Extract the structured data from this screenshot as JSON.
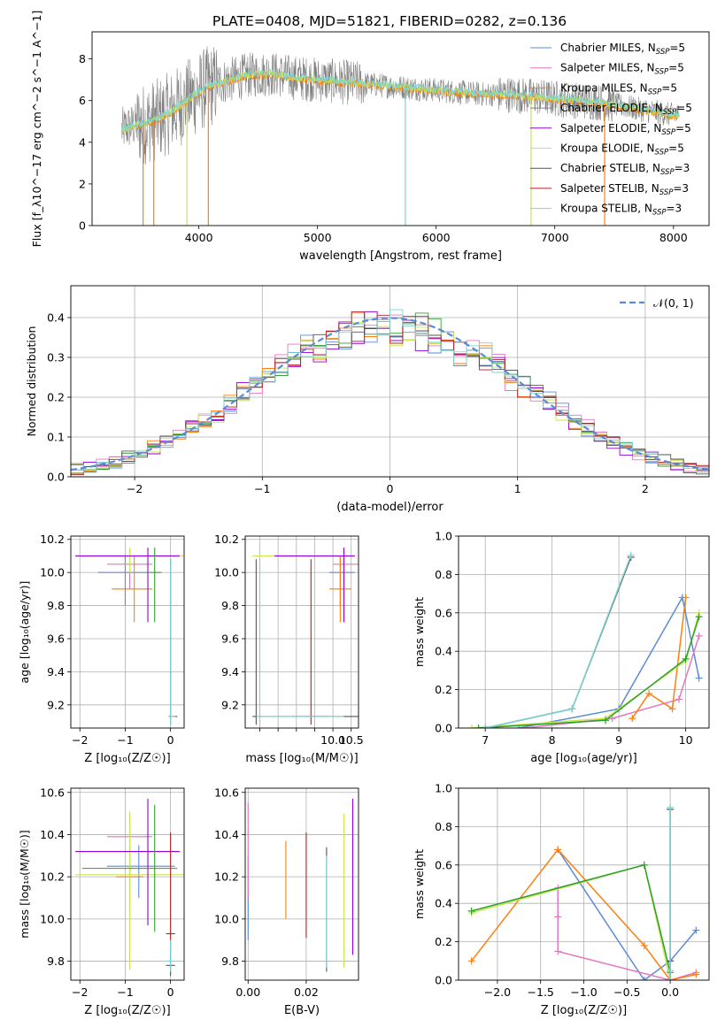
{
  "figure_title": "PLATE=0408, MJD=51821, FIBERID=0282, z=0.136",
  "colors": {
    "chabrier_miles": "#5b8bd6",
    "salpeter_miles": "#e377c2",
    "kroupa_miles": "#ff7f0e",
    "chabrier_elodie": "#2ca02c",
    "salpeter_elodie": "#9400d3",
    "kroupa_elodie": "#c8e650",
    "chabrier_stelib": "#555555",
    "salpeter_stelib": "#b22222",
    "kroupa_stelib": "#7fd3d3",
    "obs": "#808080",
    "normal": "#5b8bd6",
    "grid": "#b0b0b0"
  },
  "chart_data": [
    {
      "id": "spectrum",
      "type": "line",
      "xlabel": "wavelength [Angstrom, rest frame]",
      "ylabel": "Flux [f_λ10^−17 erg cm^−2 s^−1 A^−1]",
      "xlim": [
        3100,
        8300
      ],
      "ylim": [
        0,
        9.3
      ],
      "xticks": [
        4000,
        5000,
        6000,
        7000,
        8000
      ],
      "yticks": [
        0,
        2,
        4,
        6,
        8
      ],
      "grid": false,
      "legend_position": "right",
      "legend": [
        {
          "label": "Chabrier MILES, N",
          "sub": "SSP",
          "suffix": "=5",
          "color_key": "chabrier_miles"
        },
        {
          "label": "Salpeter MILES, N",
          "sub": "SSP",
          "suffix": "=5",
          "color_key": "salpeter_miles"
        },
        {
          "label": "Kroupa MILES, N",
          "sub": "SSP",
          "suffix": "=5",
          "color_key": "kroupa_miles"
        },
        {
          "label": "Chabrier ELODIE, N",
          "sub": "SSP",
          "suffix": "=5",
          "color_key": "obs"
        },
        {
          "label": "Salpeter ELODIE, N",
          "sub": "SSP",
          "suffix": "=5",
          "color_key": "salpeter_elodie"
        },
        {
          "label": "Kroupa ELODIE, N",
          "sub": "SSP",
          "suffix": "=5",
          "color_key": "kroupa_elodie"
        },
        {
          "label": "Chabrier STELIB, N",
          "sub": "SSP",
          "suffix": "=3",
          "color_key": "chabrier_stelib"
        },
        {
          "label": "Salpeter STELIB, N",
          "sub": "SSP",
          "suffix": "=3",
          "color_key": "salpeter_stelib"
        },
        {
          "label": "Kroupa STELIB, N",
          "sub": "SSP",
          "suffix": "=3",
          "color_key": "kroupa_stelib"
        }
      ],
      "model_curve": {
        "x": [
          3350,
          3450,
          3550,
          3650,
          3750,
          3850,
          3950,
          4050,
          4200,
          4400,
          4600,
          4800,
          5000,
          5200,
          5400,
          5600,
          5800,
          6000,
          6200,
          6400,
          6600,
          6800,
          7000,
          7200,
          7400,
          7600,
          7800,
          8000
        ],
        "y": [
          4.6,
          4.8,
          4.9,
          5.1,
          5.4,
          5.8,
          6.2,
          6.6,
          6.9,
          7.2,
          7.3,
          7.1,
          7.0,
          6.9,
          6.8,
          6.7,
          6.6,
          6.5,
          6.4,
          6.3,
          6.3,
          6.2,
          6.1,
          6.0,
          5.9,
          5.7,
          5.5,
          5.3
        ]
      },
      "dropouts": [
        {
          "x": 3530,
          "color_key": "kroupa_miles"
        },
        {
          "x": 3620,
          "color_key": "kroupa_miles"
        },
        {
          "x": 3900,
          "color_key": "kroupa_elodie"
        },
        {
          "x": 4080,
          "color_key": "kroupa_miles"
        },
        {
          "x": 5740,
          "color_key": "kroupa_stelib"
        },
        {
          "x": 6800,
          "color_key": "kroupa_elodie"
        },
        {
          "x": 7420,
          "color_key": "kroupa_miles"
        }
      ]
    },
    {
      "id": "residuals",
      "type": "histogram",
      "xlabel": "(data-model)/error",
      "ylabel": "Normed distribution",
      "xlim": [
        -2.5,
        2.5
      ],
      "ylim": [
        0,
        0.48
      ],
      "xticks": [
        -2,
        -1,
        0,
        1,
        2
      ],
      "yticks": [
        0.0,
        0.1,
        0.2,
        0.3,
        0.4
      ],
      "grid": true,
      "legend": [
        {
          "label": "𝒩(0, 1)",
          "color_key": "normal",
          "style": "dashed"
        }
      ],
      "legend_position": "top-right",
      "bin_width": 0.1
    },
    {
      "id": "age-vs-Z",
      "type": "errorbar",
      "xlabel": "Z [log₁₀(Z/Z☉)]",
      "ylabel": "age  [log₁₀(age/yr)]",
      "xlim": [
        -2.2,
        0.3
      ],
      "ylim": [
        9.06,
        10.22
      ],
      "xticks": [
        -2,
        -1,
        0
      ],
      "yticks": [
        9.2,
        9.4,
        9.6,
        9.8,
        10.0,
        10.2
      ],
      "grid": true,
      "points": [
        {
          "x": -1.0,
          "y": 10.0,
          "xerr": [
            0.6,
            0.5
          ],
          "yerr": [
            0.2,
            0.1
          ],
          "color_key": "chabrier_miles"
        },
        {
          "x": -0.9,
          "y": 10.05,
          "xerr": [
            0.5,
            0.5
          ],
          "yerr": [
            0.15,
            0.1
          ],
          "color_key": "salpeter_miles"
        },
        {
          "x": -0.8,
          "y": 9.9,
          "xerr": [
            0.5,
            0.4
          ],
          "yerr": [
            0.2,
            0.2
          ],
          "color_key": "kroupa_miles"
        },
        {
          "x": -0.9,
          "y": 10.1,
          "xerr": [
            1.2,
            1.2
          ],
          "yerr": [
            0.1,
            0.05
          ],
          "color_key": "kroupa_elodie"
        },
        {
          "x": -0.5,
          "y": 10.1,
          "xerr": [
            1.6,
            0.7
          ],
          "yerr": [
            0.4,
            0.05
          ],
          "color_key": "salpeter_elodie"
        },
        {
          "x": -0.35,
          "y": 10.0,
          "xerr": [
            0.15,
            0.15
          ],
          "yerr": [
            0.3,
            0.15
          ],
          "color_key": "chabrier_elodie"
        },
        {
          "x": 0.0,
          "y": 9.13,
          "xerr": [
            0.05,
            0.15
          ],
          "yerr": [
            0.05,
            0.95
          ],
          "color_key": "chabrier_stelib"
        },
        {
          "x": 0.0,
          "y": 9.13,
          "xerr": [
            0.05,
            0.1
          ],
          "yerr": [
            0.05,
            0.95
          ],
          "color_key": "kroupa_stelib"
        }
      ]
    },
    {
      "id": "age-vs-mass",
      "type": "errorbar",
      "xlabel": "mass [log₁₀(M/M☉)]",
      "ylabel": "",
      "xlim": [
        7.6,
        10.7
      ],
      "ylim": [
        9.06,
        10.22
      ],
      "xticks": [
        8.0,
        8.5,
        9.0,
        9.5,
        10.0,
        10.5
      ],
      "xticklabels": [
        "",
        "",
        "",
        "",
        "10.0",
        "10.5"
      ],
      "yticks": [
        9.2,
        9.4,
        9.6,
        9.8,
        10.0,
        10.2
      ],
      "grid": true,
      "points": [
        {
          "x": 10.2,
          "y": 10.0,
          "xerr": [
            0.3,
            0.4
          ],
          "yerr": [
            0.2,
            0.1
          ],
          "color_key": "chabrier_miles"
        },
        {
          "x": 10.3,
          "y": 10.05,
          "xerr": [
            0.3,
            0.4
          ],
          "yerr": [
            0.15,
            0.1
          ],
          "color_key": "salpeter_miles"
        },
        {
          "x": 10.2,
          "y": 9.9,
          "xerr": [
            0.3,
            0.3
          ],
          "yerr": [
            0.2,
            0.2
          ],
          "color_key": "kroupa_miles"
        },
        {
          "x": 10.3,
          "y": 10.1,
          "xerr": [
            2.5,
            0.3
          ],
          "yerr": [
            0.4,
            0.05
          ],
          "color_key": "kroupa_elodie"
        },
        {
          "x": 10.3,
          "y": 10.1,
          "xerr": [
            1.9,
            0.3
          ],
          "yerr": [
            0.4,
            0.05
          ],
          "color_key": "salpeter_elodie"
        },
        {
          "x": 7.9,
          "y": 9.13,
          "xerr": [
            0.1,
            2.9
          ],
          "yerr": [
            0.05,
            0.95
          ],
          "color_key": "chabrier_stelib"
        },
        {
          "x": 9.4,
          "y": 9.13,
          "xerr": [
            0.5,
            0.5
          ],
          "yerr": [
            0.05,
            0.95
          ],
          "color_key": "salpeter_stelib"
        },
        {
          "x": 8.0,
          "y": 9.13,
          "xerr": [
            0.1,
            2.3
          ],
          "yerr": [
            0.05,
            0.95
          ],
          "color_key": "kroupa_stelib"
        }
      ]
    },
    {
      "id": "massweight-vs-age",
      "type": "line",
      "xlabel": "age  [log₁₀(age/yr)]",
      "ylabel": "mass weight",
      "xlim": [
        6.6,
        10.35
      ],
      "ylim": [
        0,
        1.0
      ],
      "xticks": [
        7,
        8,
        9,
        10
      ],
      "yticks": [
        0.0,
        0.2,
        0.4,
        0.6,
        0.8,
        1.0
      ],
      "grid": true,
      "series": [
        {
          "color_key": "chabrier_miles",
          "x": [
            7.5,
            9.0,
            9.95,
            10.2
          ],
          "y": [
            0.0,
            0.1,
            0.68,
            0.26
          ]
        },
        {
          "color_key": "salpeter_miles",
          "x": [
            7.6,
            8.9,
            9.9,
            10.2
          ],
          "y": [
            0.0,
            0.05,
            0.15,
            0.48
          ]
        },
        {
          "color_key": "kroupa_miles",
          "x": [
            9.2,
            9.45,
            9.8,
            10.0
          ],
          "y": [
            0.05,
            0.18,
            0.1,
            0.68
          ]
        },
        {
          "color_key": "kroupa_elodie",
          "x": [
            6.8,
            8.8,
            10.0,
            10.2
          ],
          "y": [
            0.0,
            0.05,
            0.35,
            0.6
          ]
        },
        {
          "color_key": "chabrier_elodie",
          "x": [
            6.9,
            8.8,
            10.0,
            10.2
          ],
          "y": [
            0.0,
            0.04,
            0.36,
            0.58
          ]
        },
        {
          "color_key": "chabrier_stelib",
          "x": [
            7.0,
            8.3,
            9.18
          ],
          "y": [
            0.0,
            0.1,
            0.89
          ]
        },
        {
          "color_key": "kroupa_stelib",
          "x": [
            7.0,
            8.3,
            9.18
          ],
          "y": [
            0.0,
            0.1,
            0.9
          ]
        }
      ]
    },
    {
      "id": "mass-vs-Z",
      "type": "errorbar",
      "xlabel": "Z [log₁₀(Z/Z☉)]",
      "ylabel": "mass [log₁₀(M/M☉)]",
      "xlim": [
        -2.2,
        0.3
      ],
      "ylim": [
        9.71,
        10.62
      ],
      "xticks": [
        -2,
        -1,
        0
      ],
      "yticks": [
        9.8,
        10.0,
        10.2,
        10.4,
        10.6
      ],
      "grid": true,
      "points": [
        {
          "x": -0.7,
          "y": 10.25,
          "xerr": [
            0.7,
            0.8
          ],
          "yerr": [
            0.15,
            0.1
          ],
          "color_key": "chabrier_miles"
        },
        {
          "x": -0.9,
          "y": 10.39,
          "xerr": [
            0.5,
            0.5
          ],
          "yerr": [
            0.15,
            0.1
          ],
          "color_key": "salpeter_miles"
        },
        {
          "x": -0.9,
          "y": 10.2,
          "xerr": [
            0.3,
            0.3
          ],
          "yerr": [
            0.2,
            0.15
          ],
          "color_key": "kroupa_miles"
        },
        {
          "x": -0.9,
          "y": 10.21,
          "xerr": [
            1.2,
            1.2
          ],
          "yerr": [
            0.45,
            0.3
          ],
          "color_key": "kroupa_elodie"
        },
        {
          "x": -0.5,
          "y": 10.32,
          "xerr": [
            1.6,
            0.7
          ],
          "yerr": [
            0.35,
            0.25
          ],
          "color_key": "salpeter_elodie"
        },
        {
          "x": -0.35,
          "y": 10.24,
          "xerr": [
            1.6,
            0.5
          ],
          "yerr": [
            0.3,
            0.3
          ],
          "color_key": "chabrier_elodie"
        },
        {
          "x": 0.0,
          "y": 9.93,
          "xerr": [
            0.1,
            0.1
          ],
          "yerr": [
            0.05,
            0.48
          ],
          "color_key": "salpeter_stelib"
        },
        {
          "x": 0.0,
          "y": 9.78,
          "xerr": [
            0.1,
            0.1
          ],
          "yerr": [
            0.05,
            0.1
          ],
          "color_key": "chabrier_stelib"
        },
        {
          "x": 0.0,
          "y": 9.8,
          "xerr": [
            0.1,
            0.1
          ],
          "yerr": [
            0.05,
            0.1
          ],
          "color_key": "kroupa_stelib"
        }
      ]
    },
    {
      "id": "mass-vs-EBV",
      "type": "errorbar",
      "xlabel": "E(B-V)",
      "ylabel": "",
      "xlim": [
        -0.001,
        0.038
      ],
      "ylim": [
        9.71,
        10.62
      ],
      "xticks": [
        0.0,
        0.02
      ],
      "xticklabels": [
        "0.00",
        "0.02"
      ],
      "yticks": [
        9.8,
        10.0,
        10.2,
        10.4,
        10.6
      ],
      "grid": true,
      "vlines": [
        {
          "x": 0.0,
          "y": [
            9.9,
            10.3
          ],
          "color_key": "chabrier_miles"
        },
        {
          "x": 0.0,
          "y": [
            10.1,
            10.55
          ],
          "color_key": "salpeter_miles"
        },
        {
          "x": 0.013,
          "y": [
            10.0,
            10.37
          ],
          "color_key": "kroupa_miles"
        },
        {
          "x": 0.02,
          "y": [
            9.91,
            10.41
          ],
          "color_key": "salpeter_stelib"
        },
        {
          "x": 0.027,
          "y": [
            9.75,
            10.34
          ],
          "color_key": "chabrier_stelib"
        },
        {
          "x": 0.027,
          "y": [
            9.77,
            10.3
          ],
          "color_key": "kroupa_stelib"
        },
        {
          "x": 0.033,
          "y": [
            9.77,
            10.5
          ],
          "color_key": "kroupa_elodie"
        },
        {
          "x": 0.036,
          "y": [
            9.83,
            10.57
          ],
          "color_key": "salpeter_elodie"
        }
      ]
    },
    {
      "id": "massweight-vs-Z",
      "type": "line",
      "xlabel": "Z [log₁₀(Z/Z☉)]",
      "ylabel": "mass weight",
      "xlim": [
        -2.45,
        0.45
      ],
      "ylim": [
        0,
        1.0
      ],
      "xticks": [
        -2.0,
        -1.5,
        -1.0,
        -0.5,
        0.0
      ],
      "xticklabels": [
        "−2.0",
        "−1.5",
        "−1.0",
        "−0.5",
        "0.0"
      ],
      "yticks": [
        0.0,
        0.2,
        0.4,
        0.6,
        0.8,
        1.0
      ],
      "grid": true,
      "series": [
        {
          "color_key": "chabrier_miles",
          "x": [
            -1.3,
            -0.3,
            0.0,
            0.3
          ],
          "y": [
            0.68,
            0.0,
            0.1,
            0.26
          ]
        },
        {
          "color_key": "salpeter_miles",
          "x": [
            -1.3,
            -1.3,
            -1.3,
            0.0,
            0.3
          ],
          "y": [
            0.48,
            0.33,
            0.15,
            0.0,
            0.04
          ]
        },
        {
          "color_key": "kroupa_miles",
          "x": [
            -2.3,
            -1.3,
            -0.3,
            0.0,
            0.3
          ],
          "y": [
            0.1,
            0.68,
            0.18,
            0.0,
            0.03
          ]
        },
        {
          "color_key": "kroupa_elodie",
          "x": [
            -2.3,
            -0.3,
            0.0
          ],
          "y": [
            0.35,
            0.6,
            0.0
          ]
        },
        {
          "color_key": "chabrier_elodie",
          "x": [
            -2.3,
            -0.3,
            0.0
          ],
          "y": [
            0.36,
            0.6,
            0.04
          ]
        },
        {
          "color_key": "chabrier_stelib",
          "x": [
            0.0,
            0.0,
            0.0
          ],
          "y": [
            0.89,
            0.1,
            0.0
          ]
        },
        {
          "color_key": "kroupa_stelib",
          "x": [
            0.0,
            0.0,
            0.0
          ],
          "y": [
            0.9,
            0.05,
            0.0
          ]
        }
      ]
    }
  ]
}
